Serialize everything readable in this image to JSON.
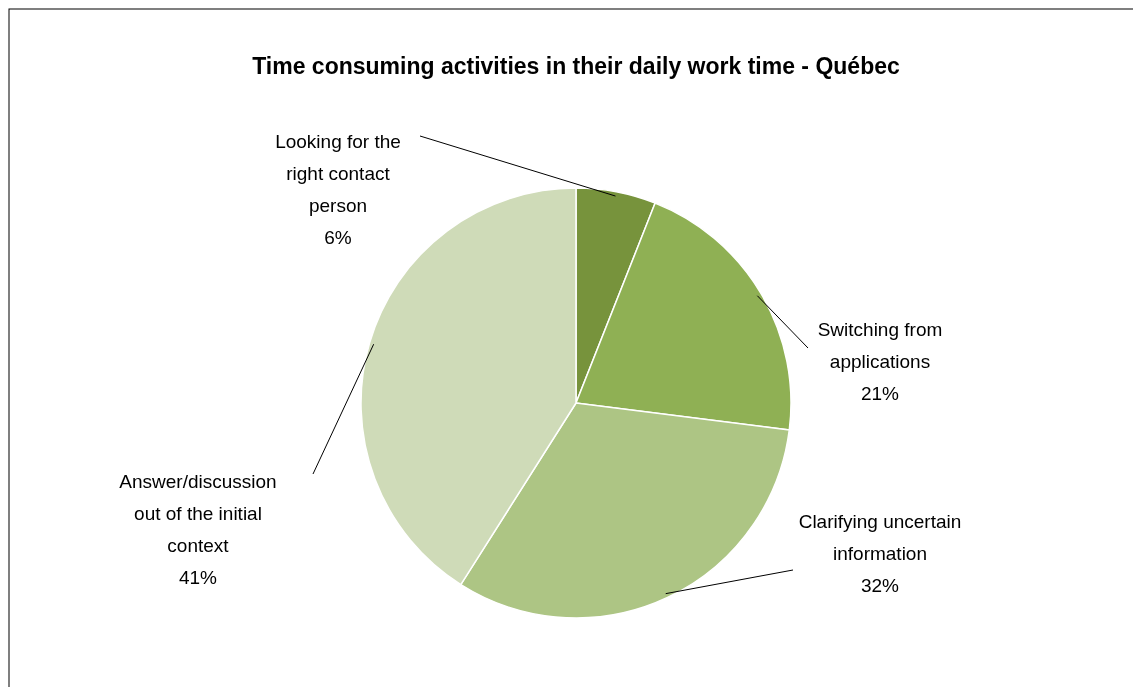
{
  "chart_data": {
    "type": "pie",
    "title": "Time consuming activities in their daily work time - Québec",
    "categories": [
      "Looking for the right contact person",
      "Switching from applications",
      "Clarifying uncertain information",
      "Answer/discussion out of the initial context"
    ],
    "values": [
      6,
      21,
      32,
      41
    ],
    "colors": [
      "#77933c",
      "#8fb054",
      "#adc584",
      "#cfdbb8"
    ],
    "value_labels": [
      "6%",
      "21%",
      "32%",
      "41%"
    ]
  }
}
